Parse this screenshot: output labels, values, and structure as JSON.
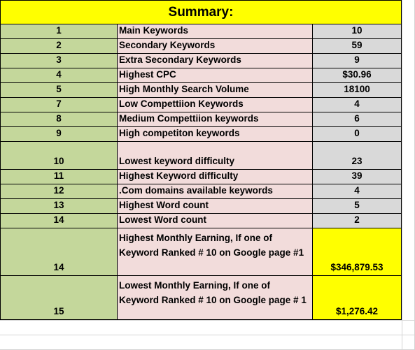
{
  "title": "Summary:",
  "rows": [
    {
      "num": "1",
      "label": "Main Keywords",
      "value": "10"
    },
    {
      "num": "2",
      "label": "Secondary Keywords",
      "value": "59"
    },
    {
      "num": "3",
      "label": "Extra Secondary Keywords",
      "value": "9"
    },
    {
      "num": "4",
      "label": "Highest CPC",
      "value": "$30.96"
    },
    {
      "num": "5",
      "label": "High Monthly Search Volume",
      "value": "18100"
    },
    {
      "num": "7",
      "label": "Low Compettiion Keywords",
      "value": "4"
    },
    {
      "num": "8",
      "label": "Medium Compettiion keywords",
      "value": "6"
    },
    {
      "num": "9",
      "label": "High competiton keywords",
      "value": "0"
    },
    {
      "num": "10",
      "label": "Lowest keyword difficulty",
      "value": "23"
    },
    {
      "num": "11",
      "label": "Highest Keyword difficulty",
      "value": "39"
    },
    {
      "num": "12",
      "label": ".Com domains available keywords",
      "value": "4"
    },
    {
      "num": "13",
      "label": "Highest Word count",
      "value": "5"
    },
    {
      "num": "14",
      "label": "Lowest Word count",
      "value": "2"
    },
    {
      "num": "14",
      "label": "Highest Monthly Earning, If one of Keyword Ranked # 10 on Google page #1",
      "value": "$346,879.53"
    },
    {
      "num": "15",
      "label": "Lowest Monthly Earning, If one of Keyword Ranked # 10 on Google page # 1",
      "value": "$1,276.42"
    }
  ],
  "colors": {
    "number_column": "#c4d79b",
    "label_column": "#f2dcdb",
    "value_column": "#d9d9d9",
    "highlight": "#ffff00"
  }
}
